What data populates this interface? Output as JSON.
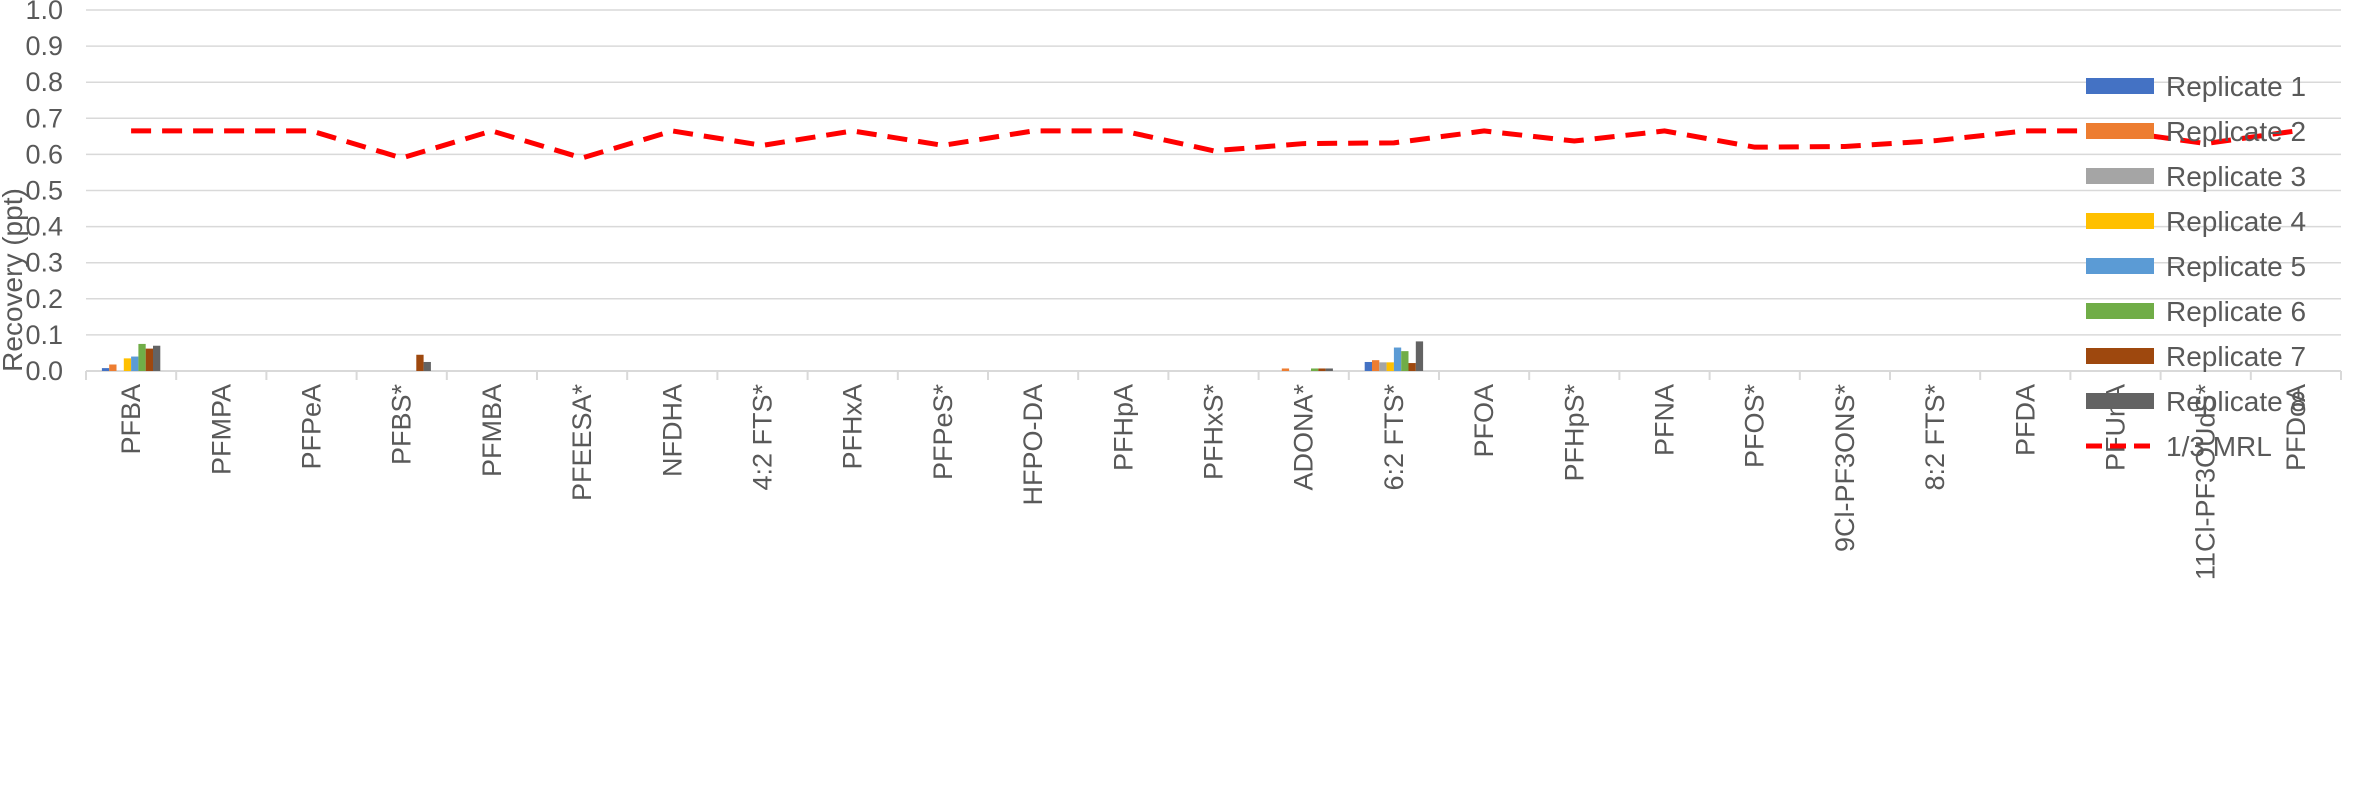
{
  "chart_data": {
    "type": "bar",
    "title": "",
    "xlabel": "",
    "ylabel": "Recovery (ppt)",
    "ylim": [
      0,
      1.0
    ],
    "yticks": [
      "0.0",
      "0.1",
      "0.2",
      "0.3",
      "0.4",
      "0.5",
      "0.6",
      "0.7",
      "0.8",
      "0.9",
      "1.0"
    ],
    "grid": true,
    "legend_position": "right",
    "categories": [
      "PFBA",
      "PFMPA",
      "PFPeA",
      "PFBS*",
      "PFMBA",
      "PFEESA*",
      "NFDHA",
      "4:2 FTS*",
      "PFHxA",
      "PFPeS*",
      "HFPO-DA",
      "PFHpA",
      "PFHxS*",
      "ADONA*",
      "6:2 FTS*",
      "PFOA",
      "PFHpS*",
      "PFNA",
      "PFOS*",
      "9Cl-PF3ONS*",
      "8:2 FTS*",
      "PFDA",
      "PFUnA",
      "11Cl-PF3OUdS*",
      "PFDoA"
    ],
    "series": [
      {
        "name": "Replicate 1",
        "color": "#4472C4",
        "values": [
          0.008,
          0,
          0,
          0,
          0,
          0,
          0,
          0,
          0,
          0,
          0,
          0,
          0,
          0,
          0.025,
          0,
          0,
          0,
          0,
          0,
          0,
          0,
          0,
          0,
          0
        ]
      },
      {
        "name": "Replicate 2",
        "color": "#ED7D31",
        "values": [
          0.018,
          0,
          0,
          0,
          0,
          0,
          0,
          0,
          0,
          0,
          0,
          0,
          0,
          0.007,
          0.03,
          0,
          0,
          0,
          0,
          0,
          0,
          0,
          0,
          0,
          0
        ]
      },
      {
        "name": "Replicate 3",
        "color": "#A5A5A5",
        "values": [
          0,
          0,
          0,
          0,
          0,
          0,
          0,
          0,
          0,
          0,
          0,
          0,
          0,
          0,
          0.024,
          0,
          0,
          0,
          0,
          0,
          0,
          0,
          0,
          0,
          0
        ]
      },
      {
        "name": "Replicate 4",
        "color": "#FFC000",
        "values": [
          0.035,
          0,
          0,
          0,
          0,
          0,
          0,
          0,
          0,
          0,
          0,
          0,
          0,
          0,
          0.024,
          0,
          0,
          0,
          0,
          0,
          0,
          0,
          0,
          0,
          0
        ]
      },
      {
        "name": "Replicate 5",
        "color": "#5B9BD5",
        "values": [
          0.04,
          0,
          0,
          0,
          0,
          0,
          0,
          0,
          0,
          0,
          0,
          0,
          0,
          0,
          0.065,
          0,
          0,
          0,
          0,
          0,
          0,
          0,
          0,
          0,
          0
        ]
      },
      {
        "name": "Replicate 6",
        "color": "#70AD47",
        "values": [
          0.075,
          0,
          0,
          0,
          0,
          0,
          0,
          0,
          0,
          0,
          0,
          0,
          0,
          0.007,
          0.055,
          0,
          0,
          0,
          0,
          0,
          0,
          0,
          0,
          0,
          0
        ]
      },
      {
        "name": "Replicate 7",
        "color": "#9E480E",
        "values": [
          0.062,
          0,
          0,
          0.045,
          0,
          0,
          0,
          0,
          0,
          0,
          0,
          0,
          0,
          0.007,
          0.022,
          0,
          0,
          0,
          0,
          0,
          0,
          0,
          0,
          0,
          0
        ]
      },
      {
        "name": "Replicate 8",
        "color": "#636363",
        "values": [
          0.07,
          0,
          0,
          0.025,
          0,
          0,
          0,
          0,
          0,
          0,
          0,
          0,
          0,
          0.007,
          0.082,
          0,
          0,
          0,
          0,
          0,
          0,
          0,
          0,
          0,
          0
        ]
      }
    ],
    "line": {
      "name": "1/3 MRL",
      "color": "#FF0000",
      "style": "dashed",
      "values": [
        0.665,
        0.665,
        0.665,
        0.59,
        0.665,
        0.59,
        0.665,
        0.625,
        0.665,
        0.625,
        0.665,
        0.665,
        0.61,
        0.63,
        0.632,
        0.665,
        0.637,
        0.665,
        0.62,
        0.622,
        0.638,
        0.665,
        0.665,
        0.63,
        0.665
      ]
    }
  }
}
